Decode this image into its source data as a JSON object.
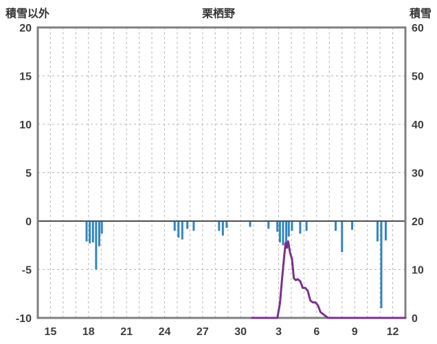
{
  "header": {
    "left_axis_title": "積雪以外",
    "title": "栗栖野",
    "right_axis_title": "積雪"
  },
  "chart_data": {
    "type": "bar+line",
    "title": "栗栖野",
    "x_axis": {
      "description": "day of month across two consecutive months",
      "range": [
        0,
        29
      ],
      "ticks": [
        {
          "label": "15",
          "day": 1
        },
        {
          "label": "18",
          "day": 4
        },
        {
          "label": "21",
          "day": 7
        },
        {
          "label": "24",
          "day": 10
        },
        {
          "label": "27",
          "day": 13
        },
        {
          "label": "30",
          "day": 16
        },
        {
          "label": "3",
          "day": 19
        },
        {
          "label": "6",
          "day": 22
        },
        {
          "label": "9",
          "day": 25
        },
        {
          "label": "12",
          "day": 28
        }
      ]
    },
    "left_axis": {
      "title": "積雪以外",
      "range": [
        -10,
        20
      ],
      "ticks": [
        {
          "label": "20",
          "value": 20
        },
        {
          "label": "15",
          "value": 15
        },
        {
          "label": "10",
          "value": 10
        },
        {
          "label": "5",
          "value": 5
        },
        {
          "label": "0",
          "value": 0
        },
        {
          "label": "-5",
          "value": -5
        },
        {
          "label": "-10",
          "value": -10
        }
      ],
      "grid_values": [
        15,
        10,
        5,
        -5
      ]
    },
    "right_axis": {
      "title": "積雪",
      "range": [
        0,
        60
      ],
      "ticks": [
        {
          "label": "60",
          "value": 60
        },
        {
          "label": "50",
          "value": 50
        },
        {
          "label": "40",
          "value": 40
        },
        {
          "label": "30",
          "value": 30
        },
        {
          "label": "20",
          "value": 20
        },
        {
          "label": "10",
          "value": 10
        },
        {
          "label": "0",
          "value": 0
        }
      ]
    },
    "series_bars": {
      "name": "積雪以外 (downward bars, left axis)",
      "axis": "left",
      "points": [
        [
          3.85,
          -2.1
        ],
        [
          4.1,
          -2.3
        ],
        [
          4.35,
          -2.2
        ],
        [
          4.6,
          -5.0
        ],
        [
          4.85,
          -2.6
        ],
        [
          5.05,
          -1.3
        ],
        [
          10.8,
          -1.0
        ],
        [
          11.1,
          -1.7
        ],
        [
          11.4,
          -1.9
        ],
        [
          11.8,
          -0.8
        ],
        [
          12.3,
          -1.0
        ],
        [
          14.3,
          -1.0
        ],
        [
          14.6,
          -1.5
        ],
        [
          14.9,
          -0.7
        ],
        [
          16.75,
          -0.6
        ],
        [
          18.2,
          -0.8
        ],
        [
          18.9,
          -1.1
        ],
        [
          19.1,
          -2.2
        ],
        [
          19.35,
          -2.5
        ],
        [
          19.6,
          -2.3
        ],
        [
          19.8,
          -1.6
        ],
        [
          20.05,
          -1.0
        ],
        [
          20.7,
          -1.3
        ],
        [
          21.2,
          -1.0
        ],
        [
          23.5,
          -1.0
        ],
        [
          24.0,
          -3.2
        ],
        [
          24.8,
          -0.9
        ],
        [
          26.8,
          -2.1
        ],
        [
          27.1,
          -9.0
        ],
        [
          27.45,
          -2.0
        ]
      ]
    },
    "series_line": {
      "name": "積雪 (snow depth line, right axis, cm)",
      "axis": "right",
      "points": [
        [
          16.9,
          0
        ],
        [
          18.9,
          0
        ],
        [
          19.1,
          3
        ],
        [
          19.3,
          9
        ],
        [
          19.45,
          13
        ],
        [
          19.55,
          15.5
        ],
        [
          19.65,
          14.5
        ],
        [
          19.75,
          15.8
        ],
        [
          19.9,
          13.5
        ],
        [
          20.05,
          12.2
        ],
        [
          20.2,
          8.2
        ],
        [
          20.35,
          7.8
        ],
        [
          20.5,
          8.0
        ],
        [
          20.7,
          7.6
        ],
        [
          20.9,
          6.2
        ],
        [
          21.1,
          6.2
        ],
        [
          21.3,
          5.6
        ],
        [
          21.5,
          3.6
        ],
        [
          21.7,
          3.2
        ],
        [
          21.9,
          3.2
        ],
        [
          22.1,
          2.6
        ],
        [
          22.3,
          1.2
        ],
        [
          22.6,
          0.6
        ],
        [
          22.9,
          0
        ],
        [
          29,
          0
        ]
      ]
    },
    "colors": {
      "bar": "#2e86c4",
      "line": "#7a2f8f",
      "frame": "#7f7f7f",
      "grid": "#b3b3b3",
      "zero_line": "#4d4d4d",
      "text": "#3d3d3d"
    },
    "grid": "dashed vertical per day, dashed horizontal per 5 (left) / 10 (right)",
    "legend_position": "none"
  }
}
